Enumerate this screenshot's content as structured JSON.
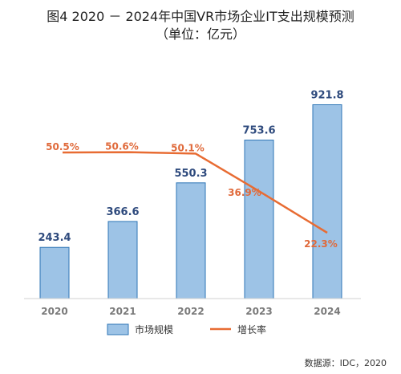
{
  "chart_data": {
    "type": "bar",
    "title": "图4 2020 － 2024年中国VR市场企业IT支出规模预测",
    "subtitle": "（单位：亿元）",
    "categories": [
      "2020",
      "2021",
      "2022",
      "2023",
      "2024"
    ],
    "series": [
      {
        "name": "市场规模",
        "type": "bar",
        "values": [
          243.4,
          366.6,
          550.3,
          753.6,
          921.8
        ],
        "labels": [
          "243.4",
          "366.6",
          "550.3",
          "753.6",
          "921.8"
        ],
        "color": "#9dc3e6",
        "border_color": "#2e75b6"
      },
      {
        "name": "增长率",
        "type": "line",
        "values": [
          50.5,
          50.6,
          50.1,
          36.9,
          22.3
        ],
        "labels": [
          "50.5%",
          "50.6%",
          "50.1%",
          "36.9%",
          "22.3%"
        ],
        "color": "#e86c33"
      }
    ],
    "ylim": [
      0,
      1000
    ],
    "y2lim": [
      0,
      60
    ],
    "grid": false,
    "legend": "bottom-center",
    "source": "数据源：IDC，2020"
  }
}
